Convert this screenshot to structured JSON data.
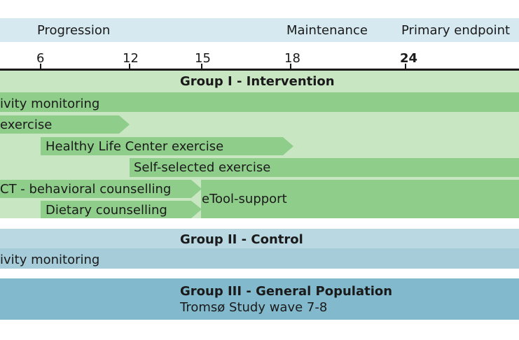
{
  "phases": {
    "progression": "Progression",
    "maintenance": "Maintenance",
    "endpoint": "Primary endpoint"
  },
  "timeline": {
    "ticks": [
      "6",
      "12",
      "15",
      "18",
      "24"
    ],
    "highlighted": "24"
  },
  "group1": {
    "title": "Group I - Intervention",
    "bars": {
      "activity": "ivity monitoring",
      "exercise": "exercise",
      "hlc": "Healthy Life Center exercise",
      "self": "Self-selected exercise",
      "act": "CT - behavioral counselling",
      "dietary": "Dietary counselling",
      "etool": "eTool-support"
    }
  },
  "group2": {
    "title": "Group II - Control",
    "activity": "ivity monitoring"
  },
  "group3": {
    "title": "Group III - General Population",
    "subtitle": "Tromsø Study wave 7-8"
  },
  "colors": {
    "phase_band": "#d6e8f0",
    "group1_bg": "#c9e6c3",
    "group1_bar": "#8fce8a",
    "group2_bg": "#b9d8e2",
    "group2_row": "#a6ccd9",
    "group3_bg": "#82b9cc"
  }
}
